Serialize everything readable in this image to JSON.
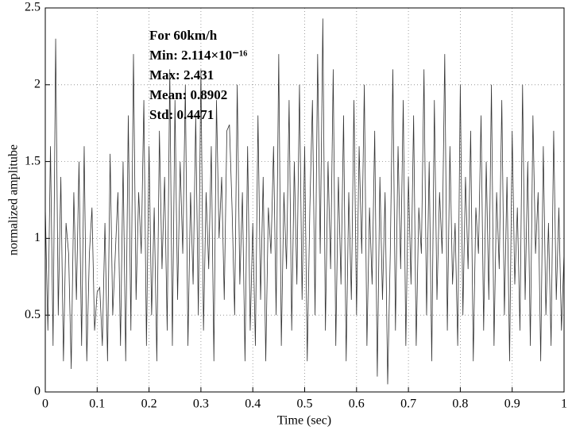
{
  "chart_data": {
    "type": "line",
    "x_label": "Time (sec)",
    "y_label": "normalized amplitube",
    "annotations": [
      "For 60km/h",
      "Min: 2.114×10⁻¹⁶",
      "Max: 2.431",
      "Mean: 0.8902",
      "Std: 0.4471"
    ],
    "xlim": [
      0,
      1
    ],
    "ylim": [
      0,
      2.5
    ],
    "xticks": [
      0,
      0.1,
      0.2,
      0.3,
      0.4,
      0.5,
      0.6,
      0.7,
      0.8,
      0.9,
      1
    ],
    "yticks": [
      0,
      0.5,
      1,
      1.5,
      2,
      2.5
    ],
    "grid": true,
    "x": [
      0,
      0.005,
      0.01,
      0.015,
      0.02,
      0.025,
      0.03,
      0.035,
      0.04,
      0.045,
      0.05,
      0.055,
      0.06,
      0.065,
      0.07,
      0.075,
      0.08,
      0.085,
      0.09,
      0.095,
      0.1,
      0.105,
      0.11,
      0.115,
      0.12,
      0.125,
      0.13,
      0.135,
      0.14,
      0.145,
      0.15,
      0.155,
      0.16,
      0.165,
      0.17,
      0.175,
      0.18,
      0.185,
      0.19,
      0.195,
      0.2,
      0.205,
      0.21,
      0.215,
      0.22,
      0.225,
      0.23,
      0.235,
      0.24,
      0.245,
      0.25,
      0.255,
      0.26,
      0.265,
      0.27,
      0.275,
      0.28,
      0.285,
      0.29,
      0.295,
      0.3,
      0.305,
      0.31,
      0.315,
      0.32,
      0.325,
      0.33,
      0.335,
      0.34,
      0.345,
      0.35,
      0.355,
      0.36,
      0.365,
      0.37,
      0.375,
      0.38,
      0.385,
      0.39,
      0.395,
      0.4,
      0.405,
      0.41,
      0.415,
      0.42,
      0.425,
      0.43,
      0.435,
      0.44,
      0.445,
      0.45,
      0.455,
      0.46,
      0.465,
      0.47,
      0.475,
      0.48,
      0.485,
      0.49,
      0.495,
      0.5,
      0.505,
      0.51,
      0.515,
      0.52,
      0.525,
      0.53,
      0.535,
      0.54,
      0.545,
      0.55,
      0.555,
      0.56,
      0.565,
      0.57,
      0.575,
      0.58,
      0.585,
      0.59,
      0.595,
      0.6,
      0.605,
      0.61,
      0.615,
      0.62,
      0.625,
      0.63,
      0.635,
      0.64,
      0.645,
      0.65,
      0.655,
      0.66,
      0.665,
      0.67,
      0.675,
      0.68,
      0.685,
      0.69,
      0.695,
      0.7,
      0.705,
      0.71,
      0.715,
      0.72,
      0.725,
      0.73,
      0.735,
      0.74,
      0.745,
      0.75,
      0.755,
      0.76,
      0.765,
      0.77,
      0.775,
      0.78,
      0.785,
      0.79,
      0.795,
      0.8,
      0.805,
      0.81,
      0.815,
      0.82,
      0.825,
      0.83,
      0.835,
      0.84,
      0.845,
      0.85,
      0.855,
      0.86,
      0.865,
      0.87,
      0.875,
      0.88,
      0.885,
      0.89,
      0.895,
      0.9,
      0.905,
      0.91,
      0.915,
      0.92,
      0.925,
      0.93,
      0.935,
      0.94,
      0.945,
      0.95,
      0.955,
      0.96,
      0.965,
      0.97,
      0.975,
      0.98,
      0.985,
      0.99,
      0.995,
      1
    ],
    "series": [
      {
        "color": "#333333",
        "values": [
          1.2,
          0.4,
          1.6,
          0.3,
          2.3,
          0.5,
          1.4,
          0.2,
          1.1,
          0.9,
          0.15,
          1.3,
          0.6,
          1.5,
          0.3,
          1.6,
          0.2,
          0.9,
          1.2,
          0.4,
          0.65,
          0.68,
          0.3,
          1.1,
          0.2,
          1.55,
          0.5,
          0.9,
          1.3,
          0.3,
          1.5,
          0.2,
          1.8,
          0.4,
          2.2,
          0.6,
          1.3,
          0.9,
          1.9,
          0.3,
          1.6,
          0.5,
          1.2,
          0.2,
          1.7,
          0.8,
          1.4,
          0.4,
          2.1,
          0.3,
          1.9,
          0.6,
          1.5,
          0.9,
          2.0,
          0.3,
          1.3,
          0.7,
          1.8,
          0.5,
          2.1,
          0.4,
          1.3,
          0.8,
          1.6,
          0.2,
          1.9,
          1.0,
          1.4,
          0.6,
          1.7,
          1.74,
          1.2,
          0.5,
          2.0,
          0.7,
          1.3,
          0.2,
          1.6,
          0.4,
          1.1,
          0.3,
          1.8,
          0.6,
          1.4,
          0.2,
          1.2,
          0.9,
          1.6,
          0.5,
          2.2,
          0.3,
          1.3,
          0.8,
          1.9,
          0.4,
          1.5,
          0.7,
          2.0,
          0.6,
          1.6,
          0.2,
          1.2,
          1.9,
          0.5,
          2.2,
          0.9,
          2.431,
          0.4,
          1.5,
          0.8,
          2.1,
          0.3,
          1.4,
          0.7,
          1.8,
          0.2,
          1.3,
          0.6,
          1.9,
          0.5,
          1.6,
          0.9,
          2.0,
          0.3,
          1.2,
          0.7,
          1.7,
          0.1,
          1.4,
          0.6,
          1.3,
          0.05,
          0.9,
          2.1,
          0.4,
          1.6,
          0.8,
          1.9,
          0.3,
          1.4,
          0.7,
          1.8,
          0.3,
          1.2,
          0.9,
          2.1,
          0.5,
          1.5,
          0.2,
          1.9,
          0.6,
          1.3,
          0.9,
          2.2,
          0.4,
          1.6,
          0.7,
          1.1,
          0.3,
          2.0,
          0.5,
          1.4,
          0.8,
          1.7,
          0.2,
          1.2,
          0.9,
          1.8,
          0.4,
          1.5,
          0.6,
          2.0,
          0.3,
          1.3,
          0.8,
          1.9,
          0.5,
          1.4,
          0.2,
          1.7,
          0.7,
          1.2,
          0.4,
          2.0,
          0.6,
          1.5,
          0.3,
          1.8,
          0.9,
          1.3,
          0.2,
          1.6,
          0.5,
          1.1,
          0.3,
          1.7,
          0.6,
          1.2,
          0.4,
          0.9
        ]
      }
    ]
  }
}
